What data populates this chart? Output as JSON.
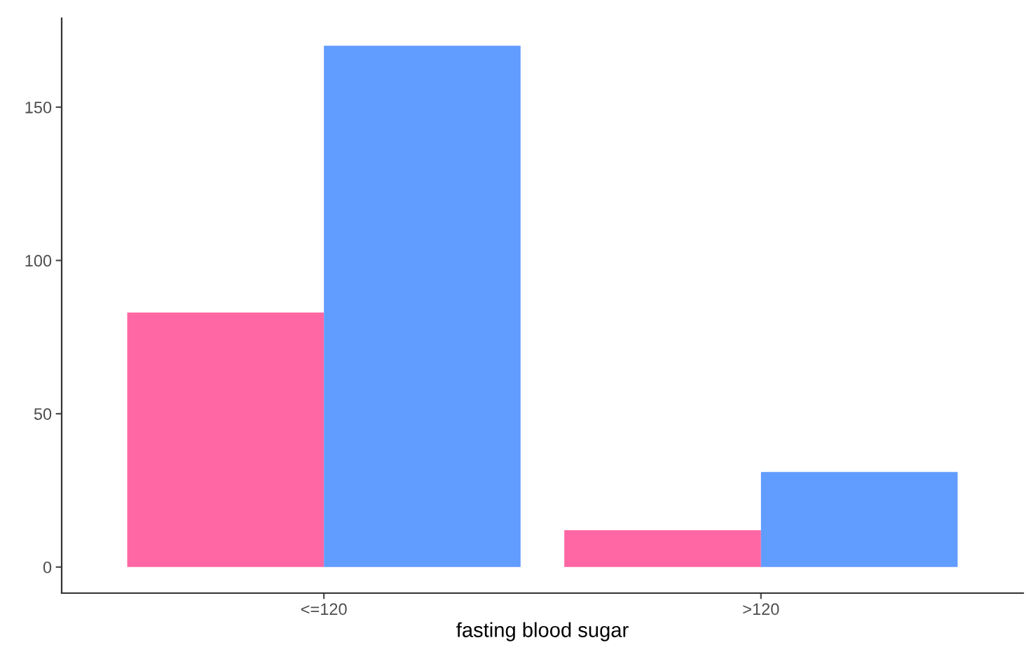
{
  "chart_data": {
    "type": "bar",
    "xlabel": "fasting blood sugar",
    "categories": [
      "<=120",
      ">120"
    ],
    "series": [
      {
        "color": "#ff67a4",
        "values": [
          83,
          12
        ]
      },
      {
        "color": "#619cff",
        "values": [
          170,
          31
        ]
      }
    ],
    "ylim": [
      -8.5,
      179
    ],
    "yticks": [
      0,
      50,
      100,
      150
    ],
    "grid": false,
    "legend": false
  }
}
